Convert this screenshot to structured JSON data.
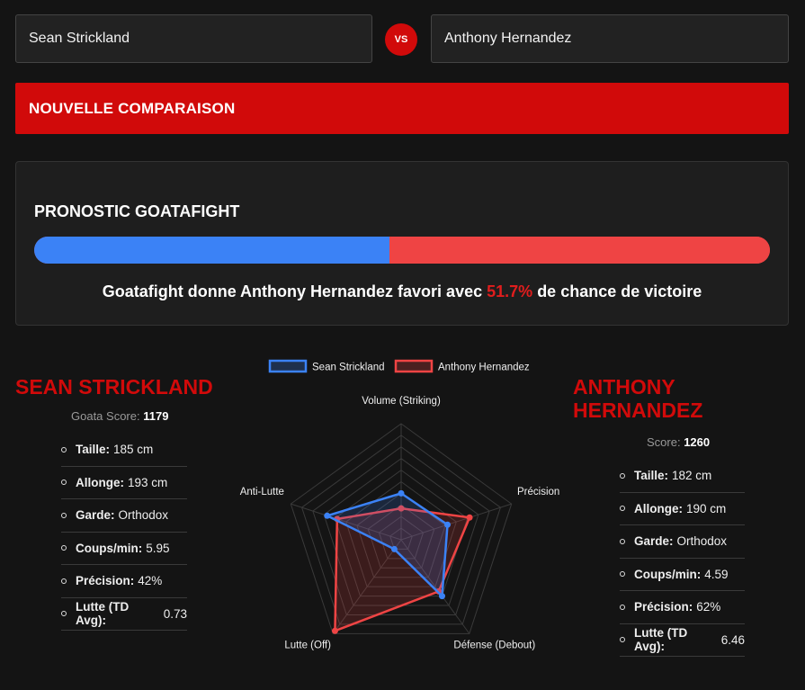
{
  "fighter1_input": "Sean Strickland",
  "fighter2_input": "Anthony Hernandez",
  "vs_label": "VS",
  "new_comparison_label": "NOUVELLE COMPARAISON",
  "prediction": {
    "title": "PRONOSTIC GOATAFIGHT",
    "text_before": "Goatafight donne Anthony Hernandez favori avec",
    "percent": "51.7%",
    "text_after": "de chance de victoire",
    "fighter1_share": 48.3,
    "fighter2_share": 51.7,
    "colors": {
      "fighter1": "#3b82f6",
      "fighter2": "#ef4444"
    }
  },
  "fighter1": {
    "name": "SEAN STRICKLAND",
    "score_label": "Goata Score:",
    "score_value": "1179",
    "stats": [
      {
        "label": "Taille:",
        "value": "185 cm"
      },
      {
        "label": "Allonge:",
        "value": "193 cm"
      },
      {
        "label": "Garde:",
        "value": "Orthodox"
      },
      {
        "label": "Coups/min:",
        "value": "5.95"
      },
      {
        "label": "Précision:",
        "value": "42%"
      },
      {
        "label": "Lutte (TD Avg):",
        "value": "0.73"
      }
    ]
  },
  "fighter2": {
    "name": "ANTHONY HERNANDEZ",
    "score_label": "Score:",
    "score_value": "1260",
    "stats": [
      {
        "label": "Taille:",
        "value": "182 cm"
      },
      {
        "label": "Allonge:",
        "value": "190 cm"
      },
      {
        "label": "Garde:",
        "value": "Orthodox"
      },
      {
        "label": "Coups/min:",
        "value": "4.59"
      },
      {
        "label": "Précision:",
        "value": "62%"
      },
      {
        "label": "Lutte (TD Avg):",
        "value": "6.46"
      }
    ]
  },
  "chart_data": {
    "type": "radar",
    "axes": [
      "Volume (Striking)",
      "Précision",
      "Défense (Debout)",
      "Lutte (Off)",
      "Anti-Lutte"
    ],
    "scale_max": 100,
    "rings": 10,
    "legend_position": "top",
    "series": [
      {
        "name": "Sean Strickland",
        "color": "#3b82f6",
        "values": [
          40,
          42,
          60,
          10,
          67
        ]
      },
      {
        "name": "Anthony Hernandez",
        "color": "#ef4444",
        "values": [
          27,
          62,
          55,
          97,
          58
        ]
      }
    ]
  }
}
